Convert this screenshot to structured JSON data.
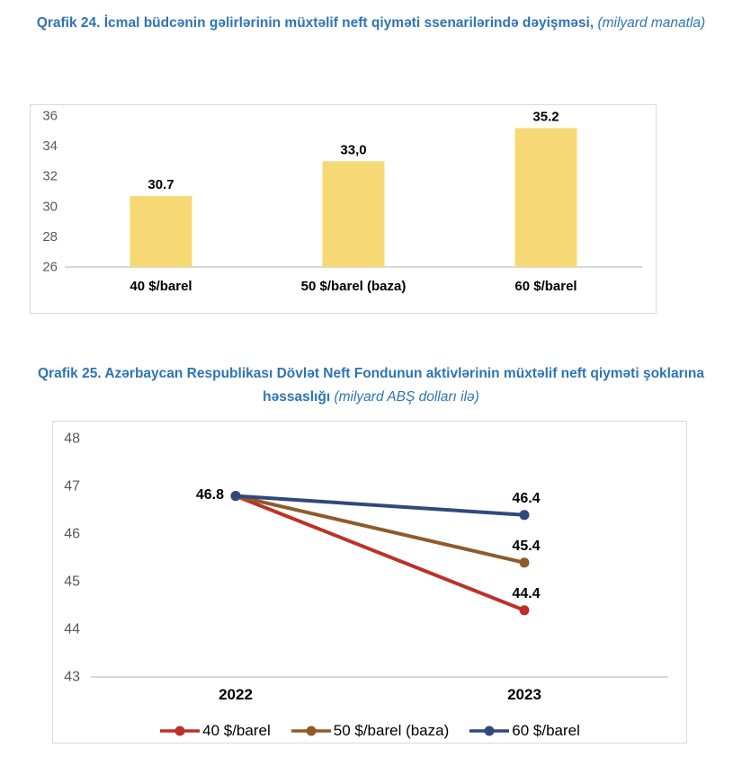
{
  "colors": {
    "title_blue": "#2E74B5",
    "tick_gray": "#595959",
    "axis_line": "#D9D9D9",
    "frame_border": "#D9D9D9",
    "bar_yellow": "#F6D975",
    "series_red": "#BE3026",
    "series_brown": "#8F5B2B",
    "series_navy": "#2F497A"
  },
  "chart24": {
    "title_main": "Qrafik 24. İcmal büdcənin gəlirlərinin müxtəlif neft qiyməti ssenarilərində dəyişməsi,",
    "title_sub": "(milyard manatla)"
  },
  "chart25": {
    "title_main": "Qrafik 25. Azərbaycan Respublikası Dövlət Neft Fondunun aktivlərinin müxtəlif neft qiyməti şoklarına həssaslığı",
    "title_sub": "(milyard ABŞ dolları ilə)"
  },
  "chart_data": [
    {
      "type": "bar",
      "title": "Qrafik 24. İcmal büdcənin gəlirlərinin müxtəlif neft qiyməti ssenarilərində dəyişməsi,",
      "subtitle": "(milyard manatla)",
      "categories": [
        "40 $/barel",
        "50 $/barel (baza)",
        "60 $/barel"
      ],
      "values": [
        30.7,
        33.0,
        35.2
      ],
      "value_labels": [
        "30.7",
        "33,0",
        "35.2"
      ],
      "bar_color": "#F6D975",
      "ylim": [
        26,
        36
      ],
      "yticks": [
        26,
        28,
        30,
        32,
        34,
        36
      ],
      "grid": false,
      "legend": false,
      "xlabel": "",
      "ylabel": ""
    },
    {
      "type": "line",
      "title": "Qrafik 25. Azərbaycan Respublikası Dövlət Neft Fondunun aktivlərinin müxtəlif neft qiyməti şoklarına həssaslığı",
      "subtitle": "(milyard ABŞ dolları ilə)",
      "x": [
        "2022",
        "2023"
      ],
      "series": [
        {
          "name": "40 $/barel",
          "values": [
            46.8,
            44.4
          ],
          "color": "#BE3026"
        },
        {
          "name": "50 $/barel (baza)",
          "values": [
            46.8,
            45.4
          ],
          "color": "#8F5B2B"
        },
        {
          "name": "60 $/barel",
          "values": [
            46.8,
            46.4
          ],
          "color": "#2F497A"
        }
      ],
      "start_label": "46.8",
      "end_labels": [
        "44.4",
        "45.4",
        "46.4"
      ],
      "ylim": [
        43,
        48
      ],
      "yticks": [
        43,
        44,
        45,
        46,
        47,
        48
      ],
      "grid": false,
      "legend_position": "bottom",
      "xlabel": "",
      "ylabel": ""
    }
  ]
}
